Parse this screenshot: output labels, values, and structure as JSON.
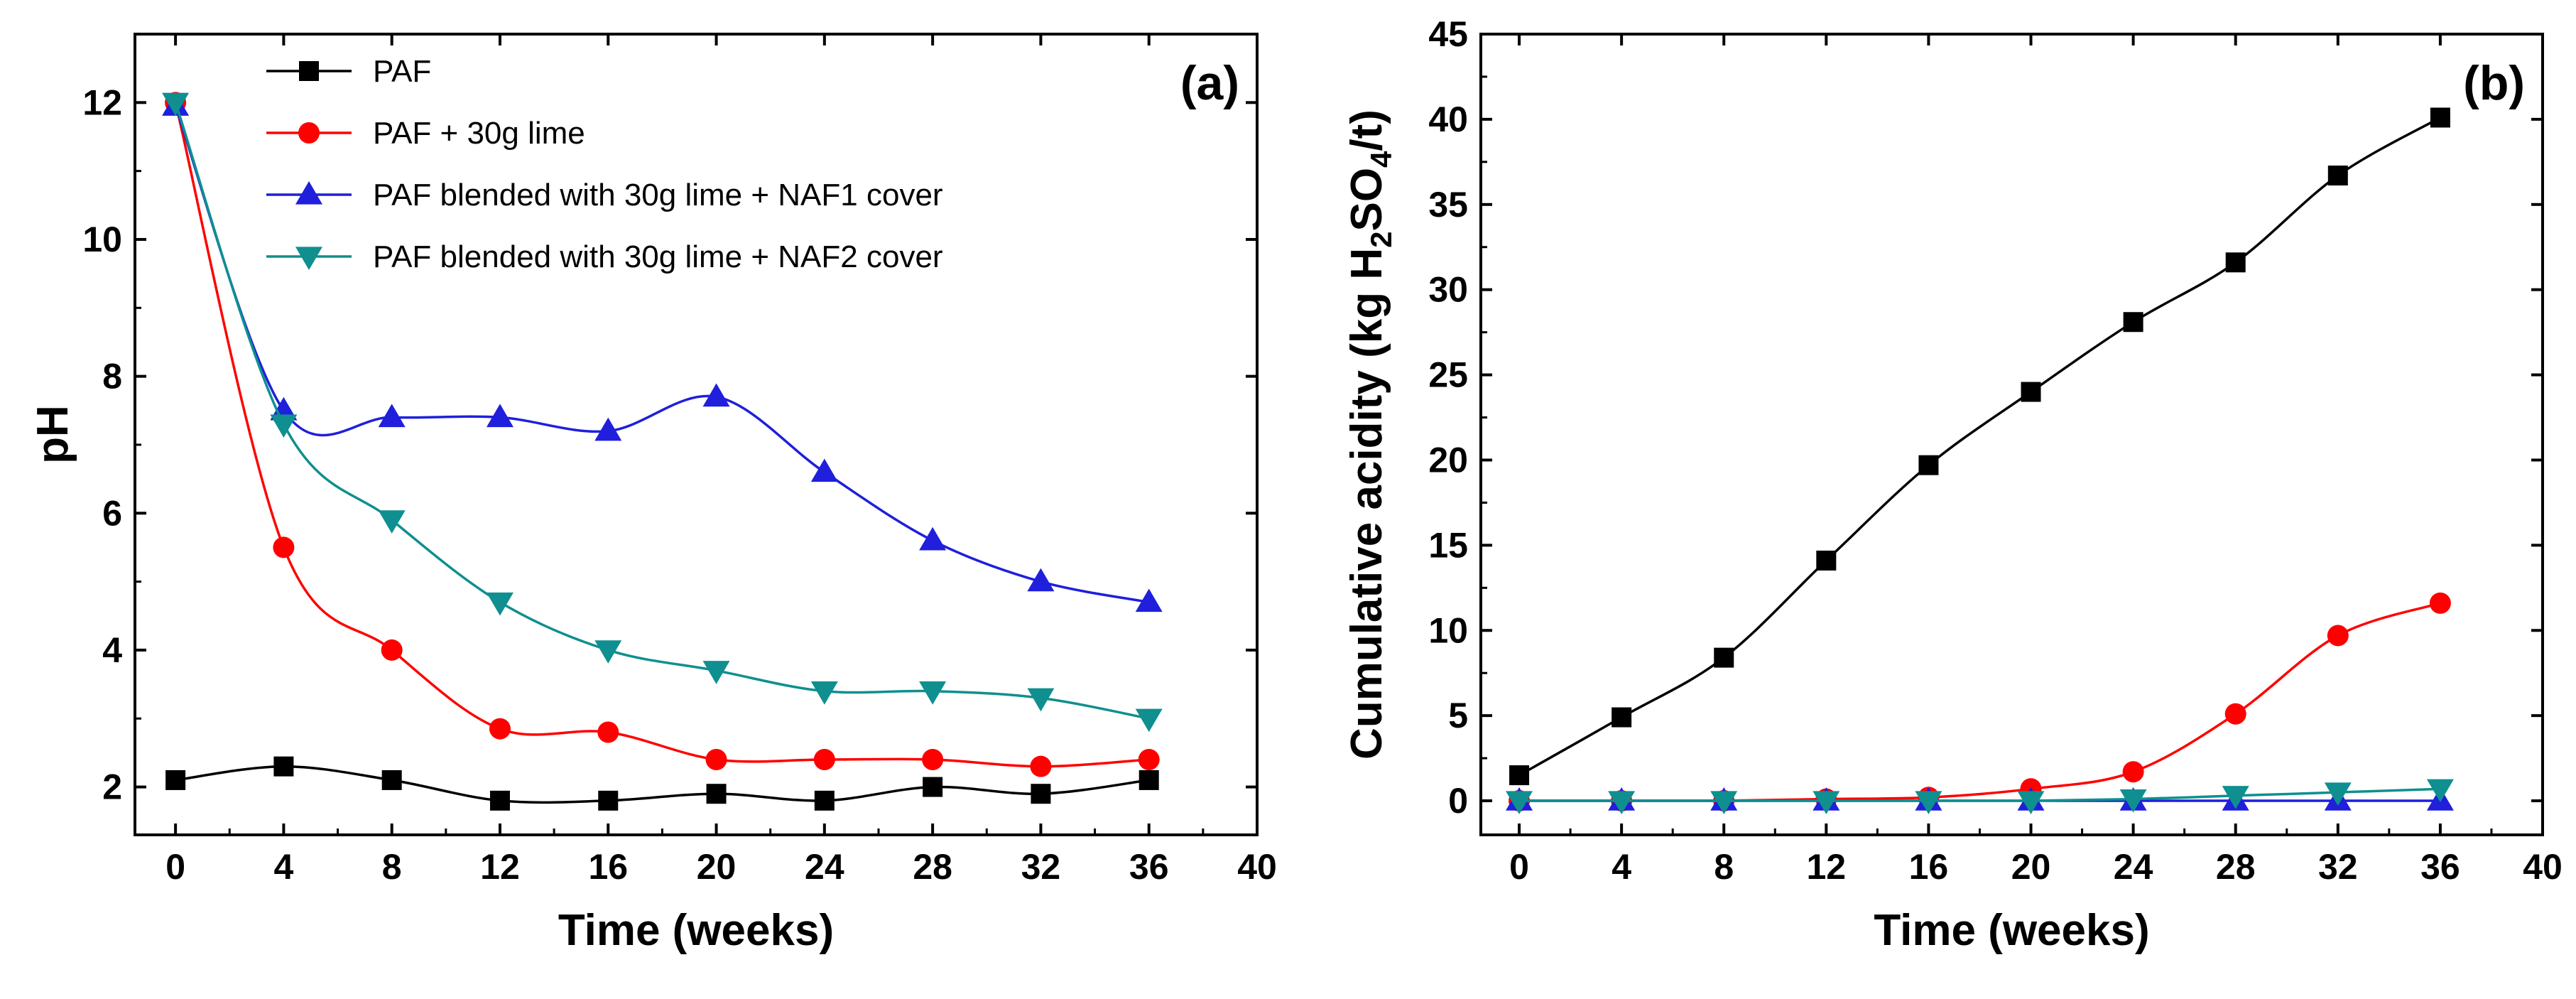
{
  "chart_data": [
    {
      "type": "line",
      "panel_label": "(a)",
      "xlabel": "Time (weeks)",
      "ylabel": "pH",
      "xlim": [
        -1.5,
        40
      ],
      "ylim": [
        1.3,
        13
      ],
      "xticks": [
        0,
        4,
        8,
        12,
        16,
        20,
        24,
        28,
        32,
        36,
        40
      ],
      "yticks": [
        2,
        4,
        6,
        8,
        10,
        12
      ],
      "legend": "top-center",
      "grid": false,
      "series": [
        {
          "name": "PAF",
          "color": "#000000",
          "marker": "square",
          "x": [
            0,
            4,
            8,
            12,
            16,
            20,
            24,
            28,
            32,
            36
          ],
          "y": [
            2.1,
            2.3,
            2.1,
            1.8,
            1.8,
            1.9,
            1.8,
            2.0,
            1.9,
            2.1
          ]
        },
        {
          "name": "PAF + 30g lime",
          "color": "#ff0000",
          "marker": "circle",
          "x": [
            0,
            4,
            8,
            12,
            16,
            20,
            24,
            28,
            32,
            36
          ],
          "y": [
            12.0,
            5.5,
            4.0,
            2.85,
            2.8,
            2.4,
            2.4,
            2.4,
            2.3,
            2.4
          ]
        },
        {
          "name": "PAF blended with 30g lime + NAF1 cover",
          "color": "#1f1fdc",
          "marker": "triangle-up",
          "x": [
            0,
            4,
            8,
            12,
            16,
            20,
            24,
            28,
            32,
            36
          ],
          "y": [
            11.95,
            7.5,
            7.4,
            7.4,
            7.2,
            7.7,
            6.6,
            5.6,
            5.0,
            4.7
          ]
        },
        {
          "name": "PAF blended with 30g lime + NAF2 cover",
          "color": "#0f8f8f",
          "marker": "triangle-down",
          "x": [
            0,
            4,
            8,
            12,
            16,
            20,
            24,
            28,
            32,
            36
          ],
          "y": [
            12.0,
            7.3,
            5.9,
            4.7,
            4.0,
            3.7,
            3.4,
            3.4,
            3.3,
            3.0
          ]
        }
      ]
    },
    {
      "type": "line",
      "panel_label": "(b)",
      "xlabel": "Time (weeks)",
      "ylabel_parts": [
        "Cumulative acidity (kg H",
        "2",
        "SO",
        "4",
        "/t)"
      ],
      "xlim": [
        -1.5,
        40
      ],
      "ylim": [
        -2,
        45
      ],
      "xticks": [
        0,
        4,
        8,
        12,
        16,
        20,
        24,
        28,
        32,
        36,
        40
      ],
      "yticks": [
        0,
        5,
        10,
        15,
        20,
        25,
        30,
        35,
        40,
        45
      ],
      "grid": false,
      "series": [
        {
          "color": "#000000",
          "marker": "square",
          "x": [
            0,
            4,
            8,
            12,
            16,
            20,
            24,
            28,
            32,
            36
          ],
          "y": [
            1.5,
            4.9,
            8.4,
            14.1,
            19.7,
            24.0,
            28.1,
            31.6,
            36.7,
            40.1
          ]
        },
        {
          "color": "#ff0000",
          "marker": "circle",
          "x": [
            0,
            4,
            8,
            12,
            16,
            20,
            24,
            28,
            32,
            36
          ],
          "y": [
            0.0,
            0.0,
            0.0,
            0.1,
            0.2,
            0.7,
            1.7,
            5.1,
            9.7,
            11.6
          ]
        },
        {
          "color": "#1f1fdc",
          "marker": "triangle-up",
          "x": [
            0,
            4,
            8,
            12,
            16,
            20,
            24,
            28,
            32,
            36
          ],
          "y": [
            0.0,
            0.0,
            0.0,
            0.0,
            0.0,
            0.0,
            0.0,
            0.0,
            0.0,
            0.0
          ]
        },
        {
          "color": "#0f8f8f",
          "marker": "triangle-down",
          "x": [
            0,
            4,
            8,
            12,
            16,
            20,
            24,
            28,
            32,
            36
          ],
          "y": [
            0.0,
            0.0,
            0.0,
            0.0,
            0.0,
            0.0,
            0.1,
            0.3,
            0.5,
            0.7
          ]
        }
      ]
    }
  ]
}
